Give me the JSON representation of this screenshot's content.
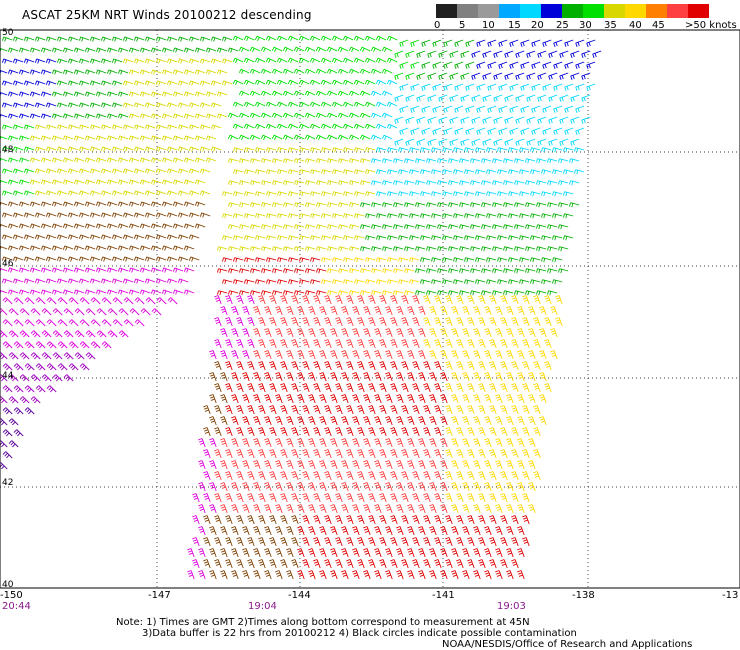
{
  "title": "ASCAT 25KM NRT Winds 20100212 descending",
  "legend": {
    "labels": [
      "0",
      "5",
      "10",
      "15",
      "20",
      "25",
      "30",
      "35",
      "40",
      "45",
      ">50 knots"
    ],
    "colors": [
      "#202020",
      "#808080",
      "#9a9a9a",
      "#00a8ff",
      "#00d8ff",
      "#0000d8",
      "#00b000",
      "#00e000",
      "#d8d800",
      "#ffd800",
      "#ff8000",
      "#ff4040",
      "#e00000",
      "#804000",
      "#c08060",
      "#e000e0",
      "#a000c0",
      "#5a009a"
    ]
  },
  "axes": {
    "lat_labels": [
      "50",
      "48",
      "46",
      "44",
      "42",
      "40"
    ],
    "lon_labels": [
      "-150",
      "-147",
      "-144",
      "-141",
      "-138",
      "-13"
    ]
  },
  "times": [
    "20:44",
    "19:04",
    "19:03"
  ],
  "notes": {
    "line1": "Note: 1) Times are GMT 2)Times along bottom correspond to measurement at 45N",
    "line2": "3)Data buffer is 22 hrs from 20100212 4) Black circles indicate possible contamination",
    "line3": "NOAA/NESDIS/Office of Research and Applications"
  }
}
